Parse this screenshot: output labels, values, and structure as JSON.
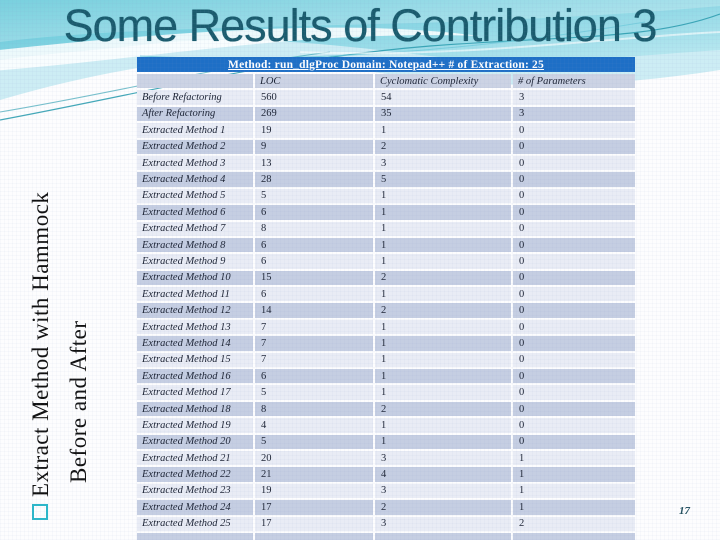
{
  "slide": {
    "title": "Some Results of Contribution 3",
    "page_number": "17",
    "section_bullet": {
      "line1": "Extract Method with Hammock",
      "line2": "Before and After"
    }
  },
  "table": {
    "caption": "Method: run_dlgProc Domain: Notepad++  # of Extraction: 25",
    "headers": [
      "",
      "LOC",
      "Cyclomatic Complexity",
      "# of Parameters"
    ],
    "rows": [
      [
        "Before Refactoring",
        "560",
        "54",
        "3"
      ],
      [
        "After Refactoring",
        "269",
        "35",
        "3"
      ],
      [
        "Extracted Method 1",
        "19",
        "1",
        "0"
      ],
      [
        "Extracted Method 2",
        "9",
        "2",
        "0"
      ],
      [
        "Extracted Method 3",
        "13",
        "3",
        "0"
      ],
      [
        "Extracted Method 4",
        "28",
        "5",
        "0"
      ],
      [
        "Extracted Method 5",
        "5",
        "1",
        "0"
      ],
      [
        "Extracted Method 6",
        "6",
        "1",
        "0"
      ],
      [
        "Extracted Method 7",
        "8",
        "1",
        "0"
      ],
      [
        "Extracted Method 8",
        "6",
        "1",
        "0"
      ],
      [
        "Extracted Method 9",
        "6",
        "1",
        "0"
      ],
      [
        "Extracted Method 10",
        "15",
        "2",
        "0"
      ],
      [
        "Extracted Method 11",
        "6",
        "1",
        "0"
      ],
      [
        "Extracted Method 12",
        "14",
        "2",
        "0"
      ],
      [
        "Extracted Method 13",
        "7",
        "1",
        "0"
      ],
      [
        "Extracted Method 14",
        "7",
        "1",
        "0"
      ],
      [
        "Extracted Method 15",
        "7",
        "1",
        "0"
      ],
      [
        "Extracted Method 16",
        "6",
        "1",
        "0"
      ],
      [
        "Extracted Method 17",
        "5",
        "1",
        "0"
      ],
      [
        "Extracted Method 18",
        "8",
        "2",
        "0"
      ],
      [
        "Extracted Method 19",
        "4",
        "1",
        "0"
      ],
      [
        "Extracted Method 20",
        "5",
        "1",
        "0"
      ],
      [
        "Extracted Method 21",
        "20",
        "3",
        "1"
      ],
      [
        "Extracted Method 22",
        "21",
        "4",
        "1"
      ],
      [
        "Extracted Method 23",
        "19",
        "3",
        "1"
      ],
      [
        "Extracted Method 24",
        "17",
        "2",
        "1"
      ],
      [
        "Extracted Method 25",
        "17",
        "3",
        "2"
      ]
    ]
  },
  "colors": {
    "title_text": "#1a5b6d",
    "caption_bg": "#1e6fc6",
    "caption_text": "#ffffff",
    "header_row_bg": "#ccd3e4",
    "row_light": "#e9ecf5",
    "row_dark": "#c5cee2",
    "table_text": "#1b2233",
    "bullet_outline": "#2cb7c9",
    "wave_accent": "#2f9fb0",
    "page_number": "#23505f"
  }
}
